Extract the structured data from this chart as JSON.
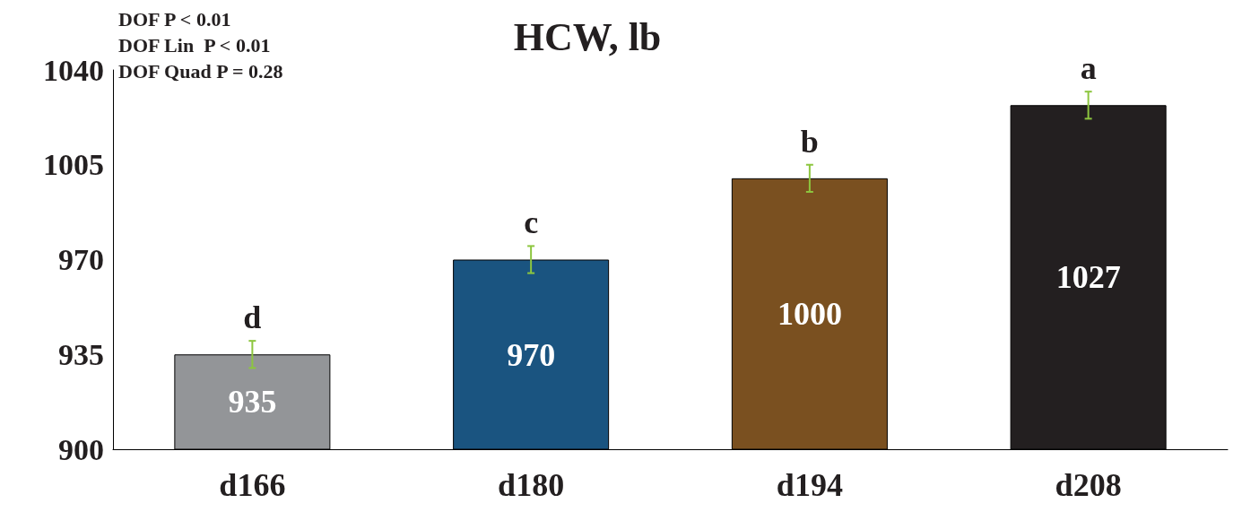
{
  "chart_data": {
    "type": "bar",
    "title": "HCW, lb",
    "categories": [
      "d166",
      "d180",
      "d194",
      "d208"
    ],
    "values": [
      935,
      970,
      1000,
      1027
    ],
    "colors": [
      "#939598",
      "#1a5480",
      "#7a5020",
      "#231f20"
    ],
    "errors": [
      5,
      5,
      5,
      5
    ],
    "data_labels": true,
    "ylim": [
      900,
      1040
    ],
    "yticks": [
      900,
      935,
      970,
      1005,
      1040
    ],
    "grid": false,
    "annotations": [
      "DOF P < 0.01",
      "DOF Lin  P < 0.01",
      "DOF Quad P = 0.28",
      {
        "text": "d",
        "x": "d166",
        "y": 935
      },
      {
        "text": "c",
        "x": "d180",
        "y": 970
      },
      {
        "text": "b",
        "x": "d194",
        "y": 1000
      },
      {
        "text": "a",
        "x": "d208",
        "y": 1027
      }
    ]
  }
}
